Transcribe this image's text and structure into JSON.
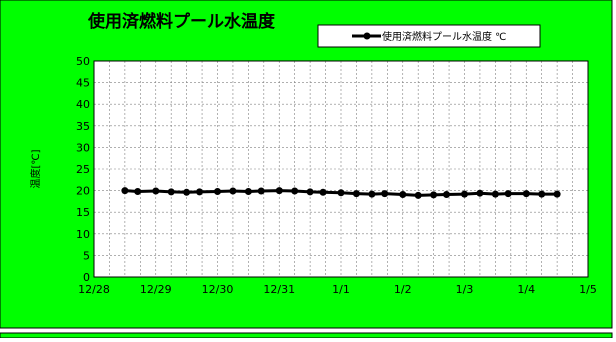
{
  "colors": {
    "panel_bg": "#00ff00",
    "plot_bg": "#ffffff",
    "grid": "#808080",
    "series": "#000000",
    "border": "#000000"
  },
  "chart_data": {
    "type": "line",
    "title": "使用済燃料プール水温度",
    "ylabel": "温度[℃]",
    "xlabel": "",
    "ylim": [
      0,
      50
    ],
    "yticks": [
      0,
      5,
      10,
      15,
      20,
      25,
      30,
      35,
      40,
      45,
      50
    ],
    "xlim": [
      "12/28",
      "1/5"
    ],
    "xtick_labels": [
      "12/28",
      "12/29",
      "12/30",
      "12/31",
      "1/1",
      "1/2",
      "1/3",
      "1/4",
      "1/5"
    ],
    "grid": true,
    "legend": {
      "position": "top-right",
      "entries": [
        "使用済燃料プール水温度 ℃"
      ]
    },
    "series": [
      {
        "name": "使用済燃料プール水温度 ℃",
        "x": [
          "12/28 12:00",
          "12/28 17:00",
          "12/29 0:00",
          "12/29 6:00",
          "12/29 12:00",
          "12/29 17:00",
          "12/30 0:00",
          "12/30 6:00",
          "12/30 12:00",
          "12/30 17:00",
          "12/31 0:00",
          "12/31 6:00",
          "12/31 12:00",
          "12/31 17:00",
          "1/1 0:00",
          "1/1 6:00",
          "1/1 12:00",
          "1/1 17:00",
          "1/2 0:00",
          "1/2 6:00",
          "1/2 12:00",
          "1/2 17:00",
          "1/3 0:00",
          "1/3 6:00",
          "1/3 12:00",
          "1/3 17:00",
          "1/4 0:00",
          "1/4 6:00",
          "1/4 12:00"
        ],
        "values": [
          20.0,
          19.8,
          19.9,
          19.7,
          19.6,
          19.7,
          19.8,
          19.9,
          19.8,
          19.9,
          20.0,
          19.9,
          19.7,
          19.6,
          19.5,
          19.3,
          19.2,
          19.3,
          19.1,
          18.9,
          19.0,
          19.1,
          19.2,
          19.4,
          19.2,
          19.3,
          19.3,
          19.2,
          19.2
        ]
      }
    ]
  }
}
